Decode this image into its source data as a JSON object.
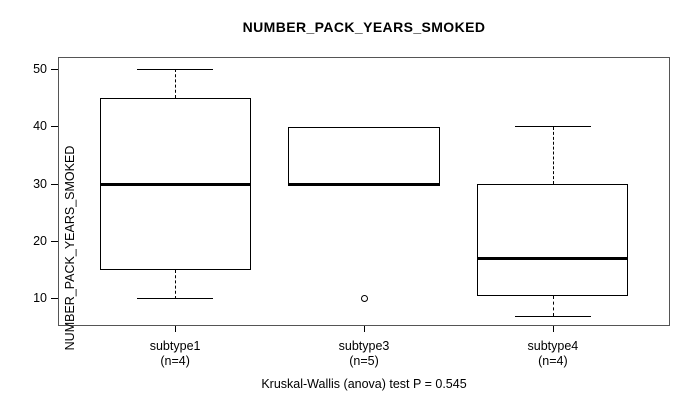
{
  "chart_data": {
    "type": "boxplot",
    "title": "NUMBER_PACK_YEARS_SMOKED",
    "ylabel": "NUMBER_PACK_YEARS_SMOKED",
    "xlabel": "",
    "yticks": [
      10,
      20,
      30,
      40,
      50
    ],
    "ylim": [
      5.3,
      52.1
    ],
    "grid": false,
    "categories": [
      "subtype1",
      "subtype3",
      "subtype4"
    ],
    "groups": [
      {
        "label": "subtype1",
        "n_label": "(n=4)",
        "n": 4,
        "whisker_low": 10,
        "q1": 15,
        "median": 30,
        "q3": 45,
        "whisker_high": 50,
        "outliers": []
      },
      {
        "label": "subtype3",
        "n_label": "(n=5)",
        "n": 5,
        "whisker_low": 30,
        "q1": 30,
        "median": 30,
        "q3": 40,
        "whisker_high": 40,
        "outliers": [
          10
        ]
      },
      {
        "label": "subtype4",
        "n_label": "(n=4)",
        "n": 4,
        "whisker_low": 7,
        "q1": 10.5,
        "median": 17,
        "q3": 30,
        "whisker_high": 40,
        "outliers": []
      }
    ],
    "annotation": "Kruskal-Wallis (anova) test P = 0.545"
  },
  "colors": {
    "line": "#000000",
    "plot_border": "#555555",
    "background": "#ffffff"
  }
}
